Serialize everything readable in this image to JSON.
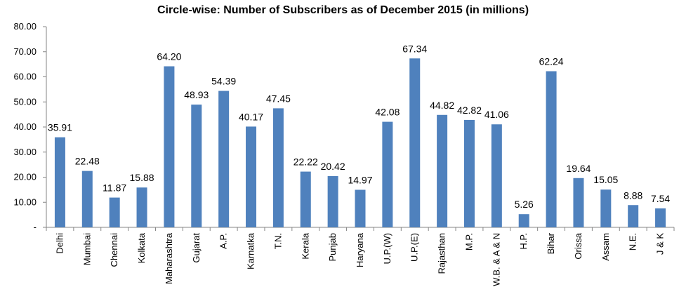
{
  "chart_data": {
    "type": "bar",
    "title": "Circle-wise: Number of Subscribers  as of December  2015 (in millions)",
    "xlabel": "",
    "ylabel": "",
    "ylim": [
      0,
      80
    ],
    "y_ticks": [
      "-",
      "10.00",
      "20.00",
      "30.00",
      "40.00",
      "50.00",
      "60.00",
      "70.00",
      "80.00"
    ],
    "categories": [
      "Delhi",
      "Mumbai",
      "Chennai",
      "Kolkata",
      "Maharashtra",
      "Gujarat",
      "A.P.",
      "Karnatka",
      "T.N.",
      "Kerala",
      "Punjab",
      "Haryana",
      "U.P.(W)",
      "U.P.(E)",
      "Rajasthan",
      "M.P.",
      "W.B. & A & N",
      "H.P.",
      "Bihar",
      "Orissa",
      "Assam",
      "N.E.",
      "J & K"
    ],
    "values": [
      35.91,
      22.48,
      11.87,
      15.88,
      64.2,
      48.93,
      54.39,
      40.17,
      47.45,
      22.22,
      20.42,
      14.97,
      42.08,
      67.34,
      44.82,
      42.82,
      41.06,
      5.26,
      62.24,
      19.64,
      15.05,
      8.88,
      7.54
    ],
    "value_labels": [
      "35.91",
      "22.48",
      "11.87",
      "15.88",
      "64.20",
      "48.93",
      "54.39",
      "40.17",
      "47.45",
      "22.22",
      "20.42",
      "14.97",
      "42.08",
      "67.34",
      "44.82",
      "42.82",
      "41.06",
      "5.26",
      "62.24",
      "19.64",
      "15.05",
      "8.88",
      "7.54"
    ],
    "bar_color": "#4F81BD",
    "grid": false,
    "legend": "none"
  }
}
